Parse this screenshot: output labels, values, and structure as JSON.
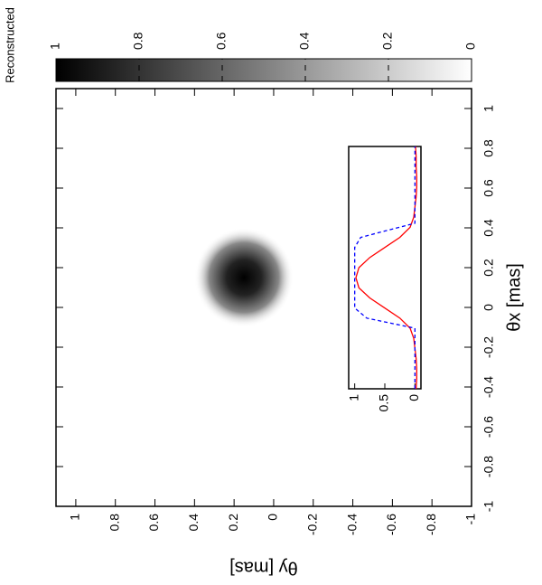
{
  "chart_data": {
    "type": "heatmap",
    "colorbar_label": "Reconstructed",
    "x_label": "θx [mas]",
    "y_label": "θy [mas]",
    "xlim": [
      -1,
      1.1
    ],
    "xticks": [
      -1,
      -0.8,
      -0.6,
      -0.4,
      -0.2,
      0,
      0.2,
      0.4,
      0.6,
      0.8,
      1
    ],
    "ylim": [
      -1,
      1.1
    ],
    "yticks": [
      -1,
      -0.8,
      -0.6,
      -0.4,
      -0.2,
      0,
      0.2,
      0.4,
      0.6,
      0.8,
      1
    ],
    "zlim": [
      0,
      1
    ],
    "zticks": [
      0,
      0.2,
      0.4,
      0.6,
      0.8,
      1
    ],
    "image": {
      "center_x": 0.15,
      "center_y": 0.15,
      "radius": 0.25
    },
    "inset": {
      "type": "line",
      "xlim": [
        -0.4,
        0.8
      ],
      "ylim": [
        -0.1,
        1.1
      ],
      "yticks": [
        0,
        0.5,
        1
      ],
      "series": [
        {
          "color": "#ff0000",
          "style": "solid",
          "x": [
            -0.4,
            -0.35,
            -0.3,
            -0.25,
            -0.2,
            -0.15,
            -0.1,
            -0.05,
            0,
            0.05,
            0.1,
            0.15,
            0.2,
            0.25,
            0.3,
            0.35,
            0.4,
            0.45,
            0.5,
            0.55,
            0.6,
            0.65,
            0.7,
            0.75,
            0.8
          ],
          "values": [
            -0.02,
            -0.03,
            -0.03,
            -0.02,
            0,
            0.02,
            0.08,
            0.25,
            0.5,
            0.75,
            0.93,
            0.98,
            0.93,
            0.75,
            0.5,
            0.25,
            0.08,
            0.02,
            0,
            -0.02,
            -0.03,
            -0.03,
            -0.02,
            -0.02,
            -0.01
          ]
        },
        {
          "color": "#0000ff",
          "style": "dashed",
          "x": [
            -0.4,
            -0.1,
            -0.05,
            0,
            0.3,
            0.35,
            0.42,
            0.8
          ],
          "values": [
            0,
            0,
            0.8,
            1,
            1,
            0.9,
            0,
            0
          ]
        }
      ]
    }
  }
}
